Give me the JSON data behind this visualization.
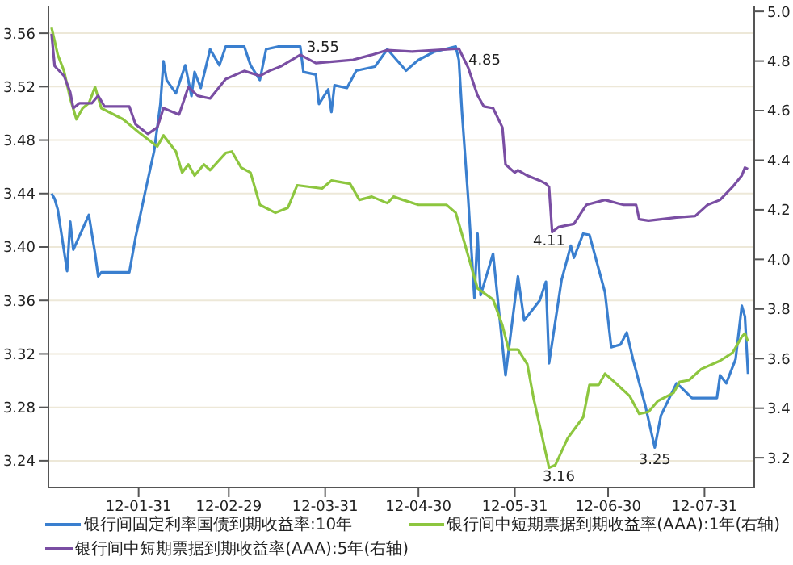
{
  "chart_data": {
    "type": "line",
    "xlim": [
      "--01-02",
      "--08-16"
    ],
    "xticks": [
      {
        "value": "--01-31",
        "label": "12-01-31"
      },
      {
        "value": "--02-29",
        "label": "12-02-29"
      },
      {
        "value": "--03-31",
        "label": "12-03-31"
      },
      {
        "value": "--04-30",
        "label": "12-04-30"
      },
      {
        "value": "--05-31",
        "label": "12-05-31"
      },
      {
        "value": "--06-30",
        "label": "12-06-30"
      },
      {
        "value": "--07-31",
        "label": "12-07-31"
      }
    ],
    "ylim": [
      3.22,
      3.58
    ],
    "yticks": [
      3.24,
      3.28,
      3.32,
      3.36,
      {
        "value": 3.4,
        "label": "3.40"
      },
      3.44,
      3.48,
      3.52,
      3.56
    ],
    "y2lim": [
      3.08,
      5.02
    ],
    "y2ticks": [
      3.2,
      3.4,
      3.6,
      3.8,
      {
        "value": 4,
        "label": "4.0"
      },
      4.2,
      4.4,
      4.6,
      4.8,
      {
        "value": 5,
        "label": "5.0"
      }
    ],
    "grid": "y",
    "legend": "bottom",
    "marker": "none",
    "line_style": "solid",
    "series": [
      {
        "name": "银行间固定利率国债到期收益率:10年",
        "color": "#3a7fcf",
        "x": [
          "--01-03",
          "--01-04",
          "--01-05",
          "--01-08",
          "--01-09",
          "--01-10",
          "--01-15",
          "--01-17",
          "--01-18",
          "--01-19",
          "--01-28",
          "--01-30",
          "--02-02",
          "--02-05",
          "--02-07",
          "--02-08",
          "--02-09",
          "--02-12",
          "--02-15",
          "--02-17",
          "--02-18",
          "--02-20",
          "--02-23",
          "--02-26",
          "--02-28",
          "--03-01",
          "--03-05",
          "--03-07",
          "--03-10",
          "--03-12",
          "--03-16",
          "--03-23",
          "--03-24",
          "--03-28",
          "--03-29",
          "--04-01",
          "--04-02",
          "--04-03",
          "--04-07",
          "--04-10",
          "--04-16",
          "--04-20",
          "--04-26",
          "--04-30",
          "--05-05",
          "--05-12",
          "--05-13",
          "--05-14",
          "--05-16",
          "--05-18",
          "--05-19",
          "--05-20",
          "--05-24",
          "--05-28",
          "--06-01",
          "--06-03",
          "--06-08",
          "--06-10",
          "--06-11",
          "--06-15",
          "--06-18",
          "--06-19",
          "--06-22",
          "--06-24",
          "--06-29",
          "--07-01",
          "--07-04",
          "--07-06",
          "--07-08",
          "--07-12",
          "--07-15",
          "--07-17",
          "--07-22",
          "--07-23",
          "--07-27",
          "--08-04",
          "--08-05",
          "--08-07",
          "--08-10",
          "--08-12",
          "--08-13",
          "--08-14"
        ],
        "values": [
          3.44,
          3.436,
          3.428,
          3.382,
          3.419,
          3.398,
          3.424,
          3.395,
          3.378,
          3.381,
          3.381,
          3.407,
          3.44,
          3.472,
          3.507,
          3.539,
          3.525,
          3.515,
          3.536,
          3.513,
          3.531,
          3.519,
          3.548,
          3.536,
          3.55,
          3.55,
          3.55,
          3.536,
          3.525,
          3.548,
          3.55,
          3.55,
          3.531,
          3.529,
          3.507,
          3.518,
          3.501,
          3.521,
          3.519,
          3.532,
          3.535,
          3.548,
          3.532,
          3.54,
          3.546,
          3.55,
          3.54,
          3.501,
          3.436,
          3.362,
          3.41,
          3.364,
          3.395,
          3.304,
          3.378,
          3.345,
          3.36,
          3.374,
          3.313,
          3.375,
          3.401,
          3.392,
          3.41,
          3.409,
          3.366,
          3.325,
          3.327,
          3.336,
          3.316,
          3.281,
          3.25,
          3.274,
          3.298,
          3.296,
          3.287,
          3.287,
          3.304,
          3.298,
          3.316,
          3.356,
          3.348,
          3.305
        ]
      },
      {
        "name": "银行间中短期票据到期收益率(AAA):1年(右轴)",
        "color": "#8dc63f",
        "axis": "y2",
        "x": [
          "--01-03",
          "--01-05",
          "--01-07",
          "--01-09",
          "--01-11",
          "--01-13",
          "--01-15",
          "--01-17",
          "--01-19",
          "--01-26",
          "--01-31",
          "--02-06",
          "--02-08",
          "--02-12",
          "--02-14",
          "--02-16",
          "--02-18",
          "--02-21",
          "--02-23",
          "--02-28",
          "--03-01",
          "--03-04",
          "--03-07",
          "--03-10",
          "--03-15",
          "--03-19",
          "--03-22",
          "--03-30",
          "--04-02",
          "--04-08",
          "--04-11",
          "--04-15",
          "--04-20",
          "--04-22",
          "--04-25",
          "--04-30",
          "--05-09",
          "--05-12",
          "--05-15",
          "--05-19",
          "--05-24",
          "--05-27",
          "--05-29",
          "--06-01",
          "--06-04",
          "--06-06",
          "--06-11",
          "--06-13",
          "--06-17",
          "--06-22",
          "--06-24",
          "--06-27",
          "--06-29",
          "--07-02",
          "--07-07",
          "--07-10",
          "--07-13",
          "--07-16",
          "--07-21",
          "--07-23",
          "--07-26",
          "--07-30",
          "--08-05",
          "--08-09",
          "--08-12",
          "--08-13",
          "--08-14"
        ],
        "values": [
          4.935,
          4.825,
          4.76,
          4.649,
          4.565,
          4.61,
          4.63,
          4.695,
          4.61,
          4.565,
          4.513,
          4.455,
          4.5,
          4.435,
          4.35,
          4.383,
          4.338,
          4.383,
          4.36,
          4.429,
          4.435,
          4.37,
          4.35,
          4.22,
          4.188,
          4.208,
          4.299,
          4.286,
          4.318,
          4.305,
          4.24,
          4.253,
          4.227,
          4.253,
          4.24,
          4.22,
          4.22,
          4.188,
          4.058,
          3.883,
          3.838,
          3.734,
          3.636,
          3.636,
          3.578,
          3.442,
          3.16,
          3.17,
          3.279,
          3.364,
          3.494,
          3.494,
          3.539,
          3.506,
          3.448,
          3.377,
          3.385,
          3.429,
          3.461,
          3.506,
          3.513,
          3.558,
          3.591,
          3.623,
          3.688,
          3.701,
          3.669
        ]
      },
      {
        "name": "银行间中短期票据到期收益率(AAA):5年(右轴)",
        "color": "#7a4ea3",
        "axis": "y2",
        "x": [
          "--01-03",
          "--01-04",
          "--01-07",
          "--01-09",
          "--01-10",
          "--01-12",
          "--01-16",
          "--01-18",
          "--01-20",
          "--01-28",
          "--01-30",
          "--02-03",
          "--02-06",
          "--02-08",
          "--02-13",
          "--02-16",
          "--02-19",
          "--02-23",
          "--02-28",
          "--03-05",
          "--03-10",
          "--03-13",
          "--03-17",
          "--03-23",
          "--03-28",
          "--04-09",
          "--04-15",
          "--04-20",
          "--04-28",
          "--05-13",
          "--05-16",
          "--05-19",
          "--05-21",
          "--05-24",
          "--05-27",
          "--05-28",
          "--05-31",
          "--06-01",
          "--06-04",
          "--06-08",
          "--06-10",
          "--06-11",
          "--06-12",
          "--06-14",
          "--06-19",
          "--06-23",
          "--06-29",
          "--07-05",
          "--07-09",
          "--07-10",
          "--07-13",
          "--07-17",
          "--07-22",
          "--07-28",
          "--08-01",
          "--08-05",
          "--08-09",
          "--08-12",
          "--08-13",
          "--08-14"
        ],
        "values": [
          4.91,
          4.78,
          4.74,
          4.675,
          4.61,
          4.63,
          4.63,
          4.66,
          4.617,
          4.617,
          4.545,
          4.506,
          4.532,
          4.61,
          4.584,
          4.695,
          4.66,
          4.649,
          4.727,
          4.76,
          4.74,
          4.76,
          4.78,
          4.825,
          4.792,
          4.805,
          4.825,
          4.844,
          4.838,
          4.85,
          4.773,
          4.662,
          4.617,
          4.61,
          4.532,
          4.383,
          4.35,
          4.36,
          4.338,
          4.318,
          4.305,
          4.292,
          4.11,
          4.13,
          4.143,
          4.22,
          4.24,
          4.22,
          4.22,
          4.162,
          4.156,
          4.162,
          4.169,
          4.175,
          4.22,
          4.24,
          4.292,
          4.338,
          4.37,
          4.364
        ]
      }
    ],
    "annotations": [
      {
        "text": "3.55",
        "x": "--03-23",
        "y": 3.55
      },
      "4.85",
      "4.11",
      "3.16",
      {
        "text": "3.25",
        "x": "--07-15",
        "y": 3.25
      }
    ]
  }
}
